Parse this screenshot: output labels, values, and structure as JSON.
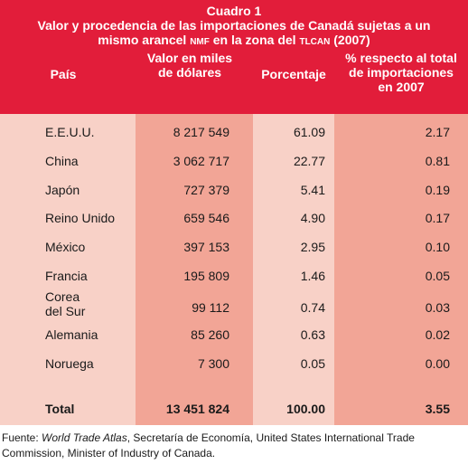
{
  "caption": {
    "line1": "Cuadro 1",
    "line2": "Valor y procedencia de las importaciones de Canadá sujetas a un",
    "line3_a": "mismo arancel ",
    "line3_nmf": "NMF",
    "line3_b": " en la zona del ",
    "line3_tlcan": "TLCAN",
    "line3_c": " (2007)"
  },
  "headers": {
    "pais": "País",
    "valor_1": "Valor en miles",
    "valor_2": "de dólares",
    "porcentaje": "Porcentaje",
    "share_1": "% respecto al total",
    "share_2": "de importaciones",
    "share_3": "en 2007"
  },
  "rows": [
    {
      "pais": "E.E.U.U.",
      "valor": "8 217 549",
      "porcentaje": "61.09",
      "share": "2.17"
    },
    {
      "pais": "China",
      "valor": "3 062 717",
      "porcentaje": "22.77",
      "share": "0.81"
    },
    {
      "pais": "Japón",
      "valor": "727 379",
      "porcentaje": "5.41",
      "share": "0.19"
    },
    {
      "pais": "Reino Unido",
      "valor": "659 546",
      "porcentaje": "4.90",
      "share": "0.17"
    },
    {
      "pais": "México",
      "valor": "397 153",
      "porcentaje": "2.95",
      "share": "0.10"
    },
    {
      "pais": "Francia",
      "valor": "195 809",
      "porcentaje": "1.46",
      "share": "0.05"
    },
    {
      "pais_1": "Corea",
      "pais_2": "del Sur",
      "valor": "99 112",
      "porcentaje": "0.74",
      "share": "0.03"
    },
    {
      "pais": "Alemania",
      "valor": "85 260",
      "porcentaje": "0.63",
      "share": "0.02"
    },
    {
      "pais": "Noruega",
      "valor": "7 300",
      "porcentaje": "0.05",
      "share": "0.00"
    }
  ],
  "total": {
    "pais": "Total",
    "valor": "13 451 824",
    "porcentaje": "100.00",
    "share": "3.55"
  },
  "source": {
    "prefix": "Fuente: ",
    "italic": "World Trade Atlas",
    "rest": ", Secretaría de Economía, United States International Trade Commission, Minister of Industry of Canada."
  },
  "colors": {
    "header": "#e21d3a",
    "col_light": "#f8d1c7",
    "col_dark": "#f2a596"
  }
}
